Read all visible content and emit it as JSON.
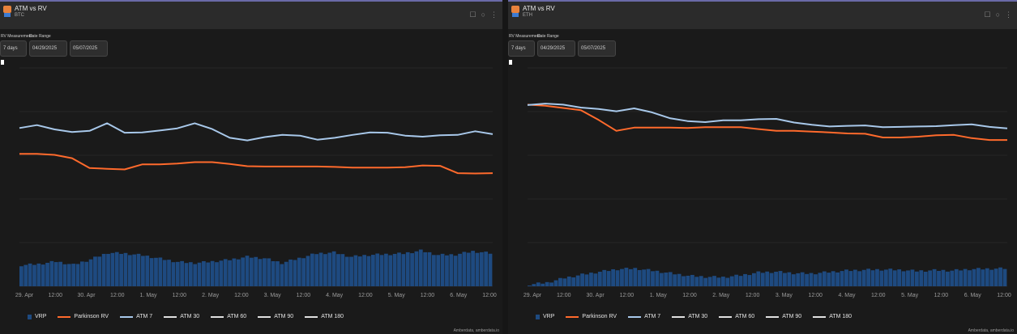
{
  "colors": {
    "vrp": "#1e4a80",
    "parkinson": "#ff6a2c",
    "atm7": "#a8c8ea",
    "atm_other": "#e0e0e0",
    "background": "#1a1a1a",
    "header": "#2b2b2b"
  },
  "panels": [
    {
      "title": "ATM vs RV",
      "asset": "BTC",
      "controls": {
        "rv_label": "RV Measurement",
        "range_label": "Date Range",
        "rv_value": "7 days",
        "date_from": "04/29/2025",
        "date_to": "05/07/2025"
      },
      "x_ticks": [
        "29. Apr",
        "12:00",
        "30. Apr",
        "12:00",
        "1. May",
        "12:00",
        "2. May",
        "12:00",
        "3. May",
        "12:00",
        "4. May",
        "12:00",
        "5. May",
        "12:00",
        "6. May",
        "12:00"
      ],
      "legend": [
        "VRP",
        "Parkinson RV",
        "ATM 7",
        "ATM 30",
        "ATM 60",
        "ATM 90",
        "ATM 180"
      ],
      "credit": "Amberdata, amberdata.io",
      "chart_data": {
        "type": "line",
        "y_range": [
          0,
          60
        ],
        "series": [
          {
            "name": "ATM 7",
            "values": [
              43.5,
              44.3,
              43.1,
              42.4,
              42.7,
              44.8,
              42.2,
              42.3,
              42.8,
              43.4,
              44.8,
              43.2,
              40.8,
              40.1,
              41.0,
              41.6,
              41.4,
              40.3,
              40.8,
              41.6,
              42.3,
              42.2,
              41.4,
              41.1,
              41.5,
              41.6,
              42.6,
              41.8
            ]
          },
          {
            "name": "Parkinson RV",
            "values": [
              36.4,
              36.4,
              36.1,
              35.2,
              32.5,
              32.3,
              32.1,
              33.5,
              33.5,
              33.7,
              34.1,
              34.1,
              33.6,
              33.0,
              32.9,
              32.9,
              32.9,
              32.9,
              32.8,
              32.6,
              32.6,
              32.6,
              32.7,
              33.2,
              33.1,
              31.1,
              31.0,
              31.1
            ]
          },
          {
            "name": "VRP",
            "values": [
              5.8,
              6.1,
              6.8,
              5.9,
              7.4,
              9.2,
              9.0,
              8.5,
              7.6,
              6.7,
              6.4,
              6.8,
              7.3,
              8.1,
              7.7,
              6.4,
              7.7,
              9.0,
              9.3,
              8.1,
              8.6,
              8.8,
              9.0,
              9.8,
              8.6,
              8.7,
              9.6,
              9.1
            ]
          }
        ]
      }
    },
    {
      "title": "ATM vs RV",
      "asset": "ETH",
      "controls": {
        "rv_label": "RV Measurement",
        "range_label": "Date Range",
        "rv_value": "7 days",
        "date_from": "04/29/2025",
        "date_to": "05/07/2025"
      },
      "x_ticks": [
        "29. Apr",
        "12:00",
        "30. Apr",
        "12:00",
        "1. May",
        "12:00",
        "2. May",
        "12:00",
        "3. May",
        "12:00",
        "4. May",
        "12:00",
        "5. May",
        "12:00",
        "6. May",
        "12:00"
      ],
      "legend": [
        "VRP",
        "Parkinson RV",
        "ATM 7",
        "ATM 30",
        "ATM 60",
        "ATM 90",
        "ATM 180"
      ],
      "credit": "Amberdata, amberdata.io",
      "chart_data": {
        "type": "line",
        "y_range": [
          0,
          60
        ],
        "series": [
          {
            "name": "ATM 7",
            "values": [
              49.8,
              50.2,
              49.9,
              49.1,
              48.7,
              48.1,
              48.9,
              47.8,
              46.2,
              45.4,
              45.1,
              45.6,
              45.6,
              45.9,
              46.0,
              45.0,
              44.4,
              43.9,
              44.1,
              44.2,
              43.7,
              43.8,
              43.9,
              44.0,
              44.3,
              44.5,
              43.8,
              43.4
            ]
          },
          {
            "name": "Parkinson RV",
            "values": [
              49.9,
              49.6,
              49.0,
              48.4,
              45.7,
              42.7,
              43.6,
              43.6,
              43.6,
              43.5,
              43.7,
              43.7,
              43.7,
              43.2,
              42.7,
              42.7,
              42.5,
              42.3,
              42.0,
              41.9,
              40.9,
              40.9,
              41.1,
              41.5,
              41.6,
              40.7,
              40.2,
              40.2
            ]
          },
          {
            "name": "VRP",
            "values": [
              0.5,
              1.0,
              2.3,
              3.2,
              4.0,
              4.7,
              4.9,
              4.3,
              3.6,
              2.9,
              2.6,
              2.5,
              3.0,
              3.8,
              4.0,
              3.6,
              3.5,
              3.9,
              4.3,
              4.5,
              4.6,
              4.5,
              4.2,
              4.4,
              4.3,
              4.7,
              4.8,
              4.9
            ]
          }
        ]
      }
    }
  ]
}
